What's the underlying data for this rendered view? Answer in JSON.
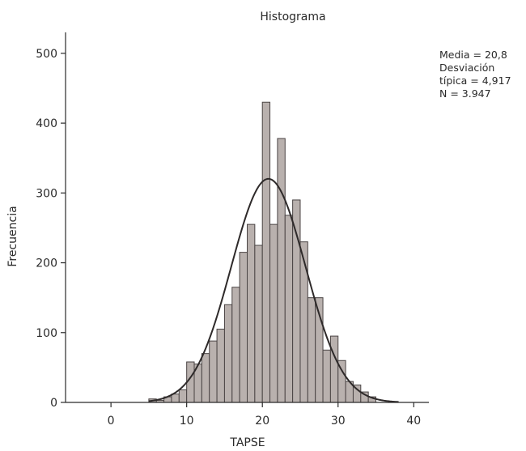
{
  "chart_data": {
    "type": "bar",
    "title": "Histograma",
    "xlabel": "TAPSE",
    "ylabel": "Frecuencia",
    "xlim": [
      -6,
      42
    ],
    "ylim": [
      0,
      530
    ],
    "xticks": [
      0,
      10,
      20,
      30,
      40
    ],
    "yticks": [
      0,
      100,
      200,
      300,
      400,
      500
    ],
    "bin_width": 1,
    "bins": [
      {
        "x0": 5,
        "count": 5
      },
      {
        "x0": 6,
        "count": 3
      },
      {
        "x0": 7,
        "count": 8
      },
      {
        "x0": 8,
        "count": 12
      },
      {
        "x0": 9,
        "count": 18
      },
      {
        "x0": 10,
        "count": 58
      },
      {
        "x0": 11,
        "count": 55
      },
      {
        "x0": 12,
        "count": 70
      },
      {
        "x0": 13,
        "count": 88
      },
      {
        "x0": 14,
        "count": 105
      },
      {
        "x0": 15,
        "count": 140
      },
      {
        "x0": 16,
        "count": 165
      },
      {
        "x0": 17,
        "count": 215
      },
      {
        "x0": 18,
        "count": 255
      },
      {
        "x0": 19,
        "count": 225
      },
      {
        "x0": 20,
        "count": 430
      },
      {
        "x0": 21,
        "count": 255
      },
      {
        "x0": 22,
        "count": 378
      },
      {
        "x0": 23,
        "count": 268
      },
      {
        "x0": 24,
        "count": 290
      },
      {
        "x0": 25,
        "count": 230
      },
      {
        "x0": 26,
        "count": 150
      },
      {
        "x0": 27,
        "count": 150
      },
      {
        "x0": 28,
        "count": 75
      },
      {
        "x0": 29,
        "count": 95
      },
      {
        "x0": 30,
        "count": 60
      },
      {
        "x0": 31,
        "count": 30
      },
      {
        "x0": 32,
        "count": 25
      },
      {
        "x0": 33,
        "count": 15
      },
      {
        "x0": 34,
        "count": 8
      }
    ],
    "normal_curve": {
      "mean": 20.8,
      "sd": 4.917,
      "n": 3947,
      "x_range": [
        5,
        38
      ]
    },
    "stats_text": [
      "Media = 20,8",
      "Desviación",
      "típica = 4,917",
      "N = 3.947"
    ],
    "colors": {
      "bar_fill": "#b9b1ae",
      "bar_stroke": "#4a4444",
      "curve": "#2e2a2a",
      "axis": "#2a2a2a"
    }
  }
}
